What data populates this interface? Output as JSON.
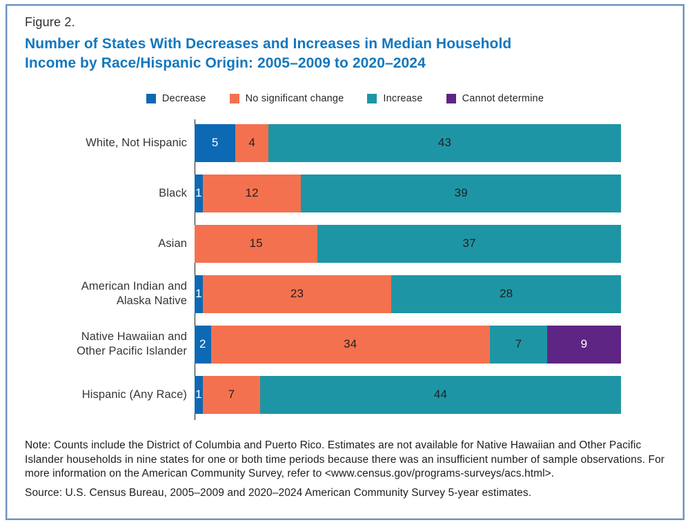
{
  "header": {
    "figure_label": "Figure 2.",
    "title": "Number of States With Decreases and Increases in Median Household\nIncome by Race/Hispanic Origin: 2005–2009 to 2020–2024"
  },
  "chart_data": {
    "type": "bar",
    "orientation": "horizontal",
    "stacked": true,
    "x_total": 52,
    "legend_position": "top",
    "grid": false,
    "categories": [
      "White, Not Hispanic",
      "Black",
      "Asian",
      "American Indian and\nAlaska Native",
      "Native Hawaiian and\nOther Pacific Islander",
      "Hispanic (Any Race)"
    ],
    "series": [
      {
        "name": "Decrease",
        "key": "decrease",
        "color": "#0d69b4",
        "value_text_color": "#ffffff",
        "values": [
          5,
          1,
          0,
          1,
          2,
          1
        ]
      },
      {
        "name": "No significant change",
        "key": "no-change",
        "color": "#f4714f",
        "value_text_color": "#212121",
        "values": [
          4,
          12,
          15,
          23,
          34,
          7
        ]
      },
      {
        "name": "Increase",
        "key": "increase",
        "color": "#1e95a5",
        "value_text_color": "#212121",
        "values": [
          43,
          39,
          37,
          28,
          7,
          44
        ]
      },
      {
        "name": "Cannot determine",
        "key": "cannot-determine",
        "color": "#5e2584",
        "value_text_color": "#ffffff",
        "values": [
          0,
          0,
          0,
          0,
          9,
          0
        ]
      }
    ]
  },
  "notes": {
    "note": "Note: Counts include the District of Columbia and Puerto Rico. Estimates are not available for Native Hawaiian and Other Pacific Islander households in nine states for one or both time periods because there was an insufficient number of sample observations. For more information on the American Community Survey, refer to <www.census.gov/programs-surveys/acs.html>.",
    "source": "Source: U.S. Census Bureau, 2005–2009 and 2020–2024 American Community Survey 5-year estimates."
  },
  "colors": {
    "title": "#1377bd",
    "figure_label": "#2c2e33",
    "frame_border": "#6e92c0",
    "axis": "#1a1a1a"
  }
}
